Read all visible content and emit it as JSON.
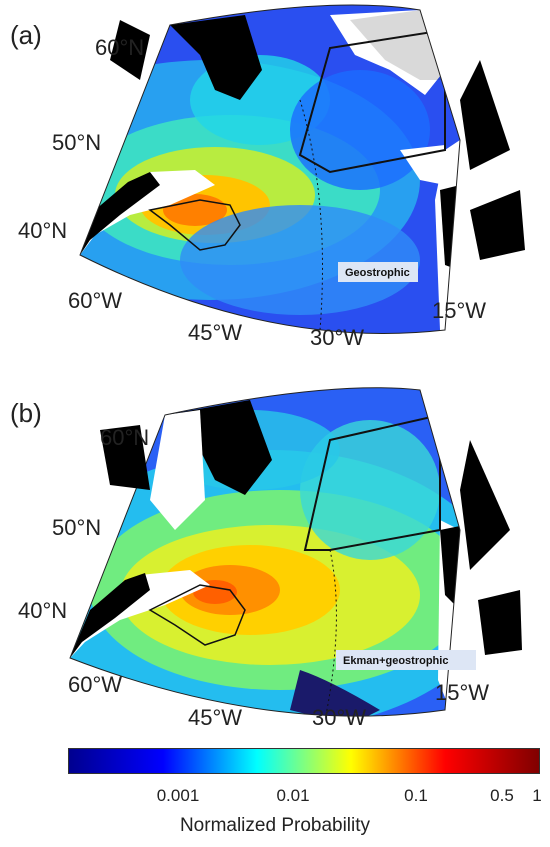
{
  "panels": [
    {
      "letter": "(a)",
      "map_label": "Geostrophic",
      "lat_labels": [
        "60°N",
        "50°N",
        "40°N"
      ],
      "lon_labels": [
        "60°W",
        "45°W",
        "30°W",
        "15°W"
      ]
    },
    {
      "letter": "(b)",
      "map_label": "Ekman+geostrophic",
      "lat_labels": [
        "60°N",
        "50°N",
        "40°N"
      ],
      "lon_labels": [
        "60°W",
        "45°W",
        "30°W",
        "15°W"
      ]
    }
  ],
  "colorbar": {
    "title": "Normalized Probability",
    "scale": "log",
    "ticks": [
      "0.001",
      "0.01",
      "0.1",
      "0.5",
      "1"
    ],
    "colormap": "jet",
    "colors": [
      "#00008f",
      "#0000ff",
      "#00ffff",
      "#ffff00",
      "#ff0000",
      "#800000"
    ]
  },
  "colors": {
    "land": "#000000",
    "label_box": "#dde6f5"
  }
}
